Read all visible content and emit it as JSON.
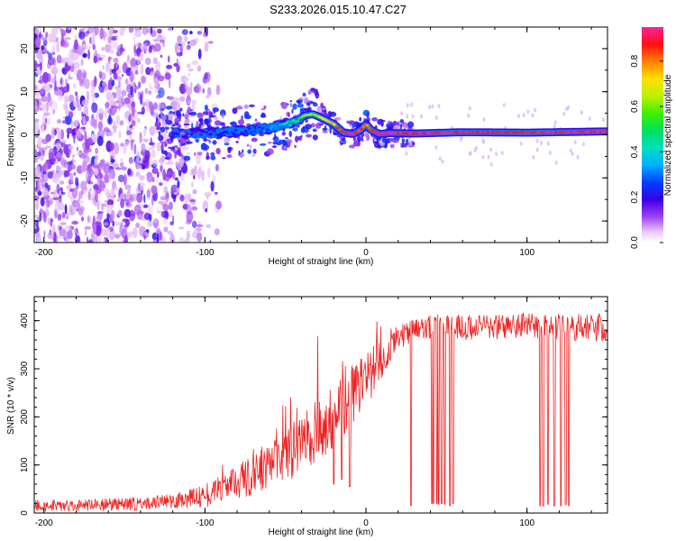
{
  "title": "S233.2026.015.10.47.C27",
  "colors": {
    "axis": "#000000",
    "snr_line": "#ee2222",
    "background": "#ffffff"
  },
  "chart_data": [
    {
      "type": "heatmap",
      "name": "spectrogram",
      "title": "S233.2026.015.10.47.C27",
      "xlabel": "Height of straight line (km)",
      "ylabel": "Frequency (Hz)",
      "xlim": [
        -206,
        150
      ],
      "ylim": [
        -25,
        25
      ],
      "xticks": [
        -200,
        -100,
        0,
        100
      ],
      "xtick_labels": [
        "-200",
        "-100",
        "0",
        "100"
      ],
      "yticks": [
        -20,
        -10,
        0,
        10,
        20
      ],
      "ytick_labels": [
        "-20",
        "-10",
        "0",
        "10",
        "20"
      ],
      "colorbar": {
        "label": "Normalized spectral amplitude",
        "range": [
          0,
          0.95
        ],
        "ticks": [
          0.0,
          0.2,
          0.4,
          0.6,
          0.8
        ],
        "tick_labels": [
          "0.0",
          "0.2",
          "0.4",
          "0.6",
          "0.8"
        ]
      },
      "ridge": {
        "description": "dominant frequency track vs height",
        "x": [
          -115,
          -100,
          -80,
          -60,
          -45,
          -38,
          -33,
          -28,
          -20,
          -14,
          -8,
          -3,
          0,
          3,
          8,
          15,
          30,
          60,
          100,
          150
        ],
        "freq_hz": [
          0.5,
          0.3,
          0.8,
          1.5,
          3.0,
          4.5,
          4.8,
          4.0,
          2.5,
          0.5,
          0.2,
          1.2,
          2.5,
          1.2,
          0.2,
          0.4,
          0.3,
          0.6,
          0.5,
          0.8
        ],
        "peak_amplitude": [
          0.15,
          0.2,
          0.25,
          0.3,
          0.45,
          0.55,
          0.6,
          0.65,
          0.75,
          0.9,
          0.95,
          0.85,
          0.8,
          0.85,
          0.95,
          0.95,
          0.92,
          0.93,
          0.9,
          0.95
        ]
      },
      "noise_region": {
        "x_range": [
          -206,
          -95
        ],
        "amplitude_range": [
          0.05,
          0.25
        ]
      }
    },
    {
      "type": "line",
      "name": "snr",
      "xlabel": "Height of straight line (km)",
      "ylabel": "SNR (10 * v/v)",
      "xlim": [
        -206,
        150
      ],
      "ylim": [
        0,
        450
      ],
      "xticks": [
        -200,
        -100,
        0,
        100
      ],
      "xtick_labels": [
        "-200",
        "-100",
        "0",
        "100"
      ],
      "yticks": [
        0,
        100,
        200,
        300,
        400
      ],
      "ytick_labels": [
        "0",
        "100",
        "200",
        "300",
        "400"
      ],
      "trend": {
        "x": [
          -206,
          -150,
          -120,
          -100,
          -85,
          -70,
          -55,
          -40,
          -30,
          -20,
          -10,
          0,
          10,
          15,
          20,
          30,
          45,
          60,
          100,
          150
        ],
        "y": [
          15,
          18,
          25,
          35,
          55,
          80,
          110,
          140,
          170,
          200,
          240,
          280,
          320,
          345,
          365,
          380,
          390,
          385,
          390,
          385
        ]
      },
      "noise_envelope": {
        "x": [
          -206,
          -120,
          -90,
          -60,
          -30,
          0,
          20,
          150
        ],
        "amplitude": [
          12,
          15,
          30,
          50,
          70,
          60,
          25,
          30
        ]
      },
      "dropouts": {
        "x": [
          -20,
          -15,
          -10,
          28,
          41,
          42,
          44,
          45,
          47,
          49,
          52,
          54,
          108,
          110,
          113,
          117,
          121,
          124,
          126
        ],
        "y": [
          60,
          70,
          55,
          15,
          20,
          20,
          20,
          18,
          20,
          18,
          15,
          20,
          15,
          15,
          18,
          15,
          15,
          18,
          15
        ]
      }
    }
  ]
}
